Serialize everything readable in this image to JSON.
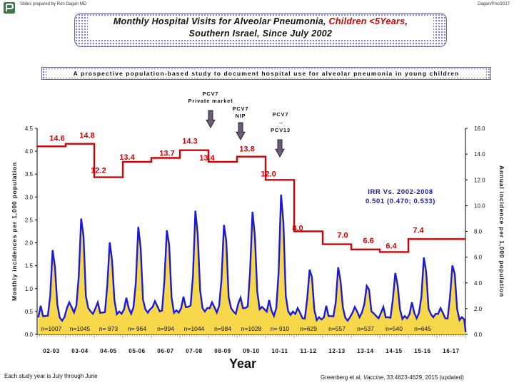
{
  "header": {
    "credit_left": "Slides prepared by Ron Dagan MD",
    "credit_right": "Dagan/Pnc/2017"
  },
  "title": {
    "part1": "Monthly Hospital Visits for Alveolar Pneumonia, ",
    "part2_red": "Children <5Years",
    "part3": ",",
    "line2": "Southern Israel, Since July 2002"
  },
  "subtitle": "A prospective population-based study to document hospital use for alveolar pneumonia in young children",
  "footnote_left": "Each study year is July through June",
  "footnote_right_prefix": "Greenberg et al, ",
  "footnote_right_journal": "Vaccine",
  "footnote_right_suffix": ", 33:4623-4629, 2015 (updated)",
  "colors": {
    "monthly_line": "#1a1ad8",
    "monthly_fill": "#f7d84a",
    "annual_line": "#d20000",
    "text_red": "#d20000",
    "arrow_fill": "#6b5a78",
    "arrow_stroke": "#2a2233"
  },
  "chart_data": {
    "type": "line",
    "xlabel": "Year",
    "ylabel_left": "Monthly incidences per 1,000 population",
    "ylabel_right": "Annual incidence per 1,000 population",
    "y_left_range": [
      0,
      4.5
    ],
    "y_left_ticks": [
      "0.0",
      "0.5",
      "1.0",
      "1.5",
      "2.0",
      "2.5",
      "3.0",
      "3.5",
      "4.0",
      "4.5"
    ],
    "y_right_range": [
      0,
      16
    ],
    "y_right_ticks": [
      "0.0",
      "2.0",
      "4.0",
      "6.0",
      "8.0",
      "10.0",
      "12.0",
      "14.0",
      "16.0"
    ],
    "study_years": [
      "02-03",
      "03-04",
      "04-05",
      "05-06",
      "06-07",
      "07-08",
      "08-09",
      "09-10",
      "10-11",
      "11-12",
      "12-13",
      "13-14",
      "14-15",
      "15-16",
      "16-17"
    ],
    "annual_incidence": [
      14.6,
      14.8,
      12.2,
      13.4,
      13.7,
      14.3,
      13.4,
      13.8,
      12.0,
      8.0,
      7.0,
      6.6,
      6.4,
      7.4
    ],
    "annual_labels": [
      "14.6",
      "14.8",
      "12.2",
      "13.4",
      "13.7",
      "14.3",
      "13.4",
      "13.8",
      "12.0",
      "8.0",
      "7.0",
      "6.6",
      "6.4",
      "7.4"
    ],
    "n_labels": [
      "n=1007",
      "n=1045",
      "n= 873",
      "n= 964",
      "n=994",
      "n=1044",
      "n=984",
      "n=1028",
      "n= 910",
      "n=629",
      "n=557",
      "n=537",
      "n=540",
      "n=645"
    ],
    "monthly_peaks": [
      1.85,
      2.65,
      2.05,
      2.35,
      2.35,
      2.75,
      2.5,
      2.75,
      3.1,
      1.45,
      1.45,
      1.1,
      1.35,
      1.65,
      1.55
    ],
    "monthly_troughs": [
      0.3,
      0.45,
      0.4,
      0.45,
      0.45,
      0.5,
      0.45,
      0.5,
      0.4,
      0.3,
      0.3,
      0.35,
      0.3,
      0.35,
      0.3
    ],
    "series": [
      {
        "name": "Monthly incidence per 1,000",
        "axis": "left"
      },
      {
        "name": "Annual incidence per 1,000",
        "axis": "right"
      }
    ],
    "annotations": {
      "pcv7_private": "PCV7\nPrivate market",
      "pcv7_nip": "PCV7\nNIP",
      "pcv7_to_pcv13": "PCV7\n→\nPCV13",
      "irr_line1": "IRR Vs. 2002-2008",
      "irr_line2": "0.501 (0.470; 0.533)"
    }
  }
}
